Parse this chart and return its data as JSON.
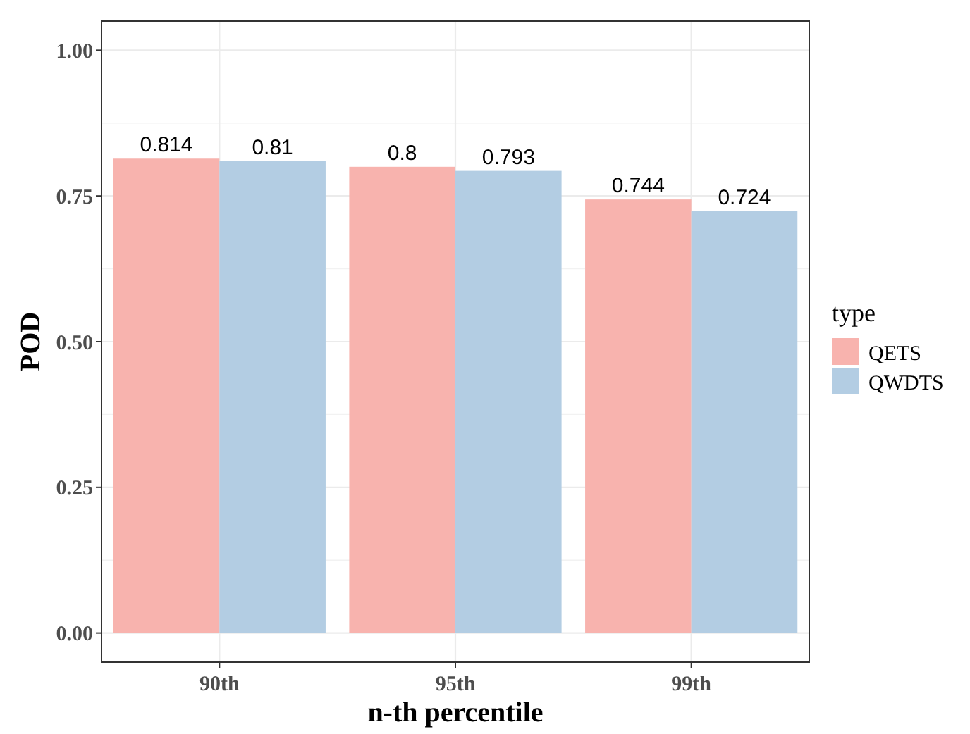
{
  "chart_data": {
    "type": "bar",
    "xlabel": "n-th percentile",
    "ylabel": "POD",
    "legend_title": "type",
    "categories": [
      "90th",
      "95th",
      "99th"
    ],
    "series": [
      {
        "name": "QETS",
        "color": "#f8b3ae",
        "values": [
          0.814,
          0.8,
          0.744
        ]
      },
      {
        "name": "QWDTS",
        "color": "#b3cde3",
        "values": [
          0.81,
          0.793,
          0.724
        ]
      }
    ],
    "ylim": [
      -0.05,
      1.05
    ],
    "yticks": [
      {
        "value": 0,
        "label": "0.00"
      },
      {
        "value": 0.25,
        "label": "0.25"
      },
      {
        "value": 0.5,
        "label": "0.50"
      },
      {
        "value": 0.75,
        "label": "0.75"
      },
      {
        "value": 1,
        "label": "1.00"
      }
    ],
    "grid": true,
    "legend": "right",
    "data_labels": true
  }
}
